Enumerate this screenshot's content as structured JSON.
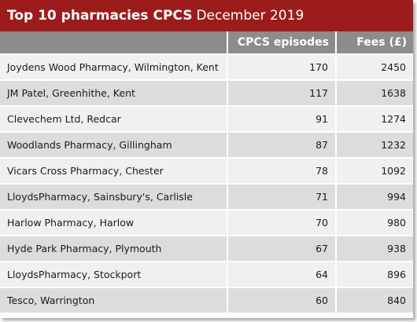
{
  "title": {
    "bold": "Top 10 pharmacies CPCS",
    "rest": "December 2019"
  },
  "colors": {
    "title_bar": "#9c1c1c",
    "header_bg": "#8c8c8c",
    "row_light": "#f0f0f0",
    "row_dark": "#dcdcdc"
  },
  "table": {
    "headers": [
      "",
      "CPCS episodes",
      "Fees (£)"
    ],
    "rows": [
      {
        "name": "Joydens Wood Pharmacy, Wilmington, Kent",
        "episodes": "170",
        "fees": "2450"
      },
      {
        "name": "JM Patel, Greenhithe, Kent",
        "episodes": "117",
        "fees": "1638"
      },
      {
        "name": "Clevechem Ltd, Redcar",
        "episodes": "91",
        "fees": "1274"
      },
      {
        "name": "Woodlands Pharmacy, Gillingham",
        "episodes": "87",
        "fees": "1232"
      },
      {
        "name": "Vicars Cross Pharmacy, Chester",
        "episodes": "78",
        "fees": "1092"
      },
      {
        "name": "LloydsPharmacy, Sainsbury's, Carlisle",
        "episodes": "71",
        "fees": "994"
      },
      {
        "name": "Harlow Pharmacy, Harlow",
        "episodes": "70",
        "fees": "980"
      },
      {
        "name": "Hyde Park Pharmacy, Plymouth",
        "episodes": "67",
        "fees": "938"
      },
      {
        "name": "LloydsPharmacy, Stockport",
        "episodes": "64",
        "fees": "896"
      },
      {
        "name": "Tesco, Warrington",
        "episodes": "60",
        "fees": "840"
      }
    ]
  }
}
